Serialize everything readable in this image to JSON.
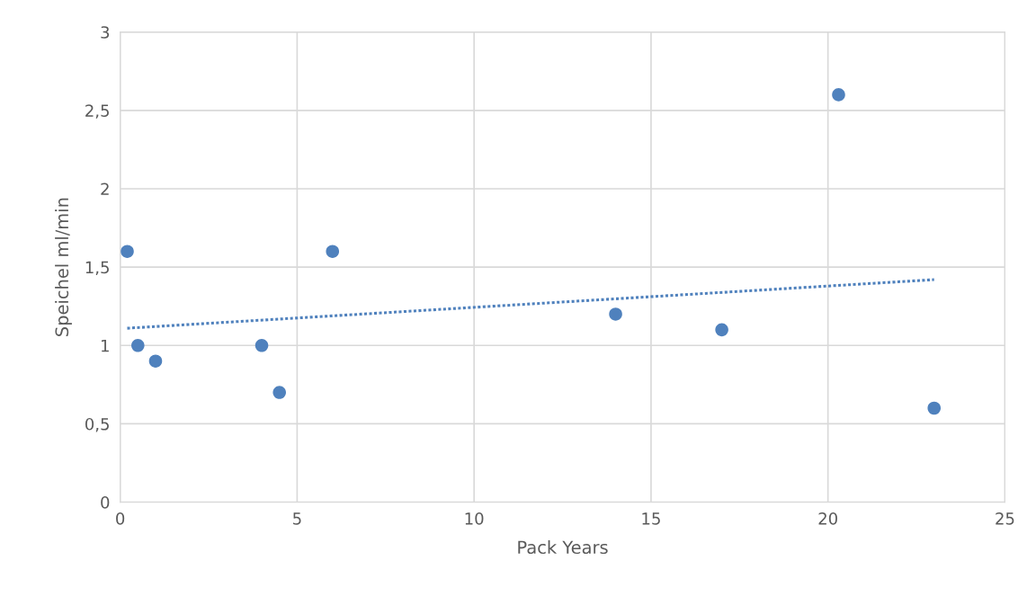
{
  "chart_data": {
    "type": "scatter",
    "xlabel": "Pack Years",
    "ylabel": "Speichel ml/min",
    "xlim": [
      0,
      25
    ],
    "xticks": [
      0,
      5,
      10,
      15,
      20,
      25
    ],
    "ylim": [
      0,
      3
    ],
    "yticks": [
      0,
      {
        "value": 0.5,
        "label": "0,5"
      },
      1,
      {
        "value": 1.5,
        "label": "1,5"
      },
      2,
      {
        "value": 2.5,
        "label": "2,5"
      },
      3
    ],
    "grid": true,
    "series": [
      {
        "color": "#4f81bd",
        "marker": "circle",
        "x": [
          0.2,
          0.5,
          1,
          4,
          4.5,
          6,
          14,
          17,
          20.3,
          23
        ],
        "values": [
          1.6,
          1.0,
          0.9,
          1.0,
          0.7,
          1.6,
          1.2,
          1.1,
          2.6,
          0.6
        ]
      },
      {
        "type": "line",
        "color": "#4f81bd",
        "line_style": "dotted",
        "marker": "none",
        "x": [
          0.2,
          23
        ],
        "values": [
          1.11,
          1.42
        ]
      }
    ]
  }
}
